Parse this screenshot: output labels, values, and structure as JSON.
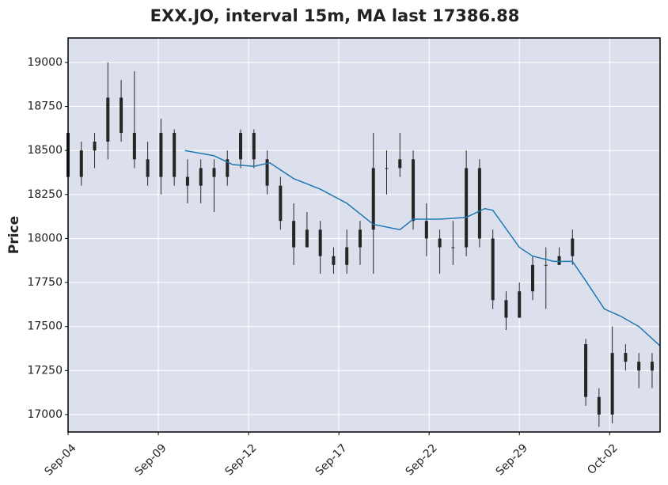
{
  "chart_data": {
    "type": "candlestick",
    "title": "EXX.JO, interval 15m, MA last 17386.88",
    "ylabel": "Price",
    "xlim": [
      0,
      223
    ],
    "ylim": [
      16901,
      19139
    ],
    "xticks": [
      {
        "value": 0,
        "label": "Sep-04"
      },
      {
        "value": 34,
        "label": "Sep-09"
      },
      {
        "value": 68,
        "label": "Sep-12"
      },
      {
        "value": 102,
        "label": "Sep-17"
      },
      {
        "value": 136,
        "label": "Sep-22"
      },
      {
        "value": 170,
        "label": "Sep-29"
      },
      {
        "value": 204,
        "label": "Oct-02"
      }
    ],
    "yticks": [
      17000,
      17250,
      17500,
      17750,
      18000,
      18250,
      18500,
      18750,
      19000
    ],
    "grid": true,
    "background": "#dce0ec",
    "gridcolor": "#ffffff",
    "color": "#262626",
    "candles": {
      "x": [
        0,
        5,
        10,
        15,
        20,
        25,
        30,
        35,
        40,
        45,
        50,
        55,
        60,
        65,
        70,
        75,
        80,
        85,
        90,
        95,
        100,
        105,
        110,
        115,
        120,
        125,
        130,
        135,
        140,
        145,
        150,
        155,
        160,
        165,
        170,
        175,
        180,
        185,
        190,
        195,
        200,
        205,
        210,
        215,
        220
      ],
      "open": [
        18600,
        18350,
        18500,
        18550,
        18800,
        18600,
        18450,
        18350,
        18600,
        18350,
        18300,
        18400,
        18350,
        18450,
        18600,
        18450,
        18300,
        18100,
        17950,
        18050,
        17900,
        17850,
        17950,
        18050,
        18400,
        18400,
        18450,
        18100,
        18000,
        17950,
        17950,
        18400,
        18000,
        17650,
        17550,
        17700,
        17850,
        17850,
        17900,
        17400,
        17100,
        17000,
        17350,
        17300,
        17250
      ],
      "high": [
        18650,
        18550,
        18600,
        19000,
        18900,
        18950,
        18550,
        18680,
        18620,
        18450,
        18450,
        18450,
        18500,
        18620,
        18620,
        18500,
        18350,
        18200,
        18150,
        18100,
        17950,
        18050,
        18100,
        18600,
        18500,
        18600,
        18500,
        18200,
        18050,
        18100,
        18500,
        18450,
        18050,
        17700,
        17750,
        17900,
        17950,
        17950,
        18050,
        17430,
        17150,
        17500,
        17400,
        17350,
        17350
      ],
      "low": [
        18200,
        18300,
        18400,
        18450,
        18550,
        18400,
        18300,
        18250,
        18300,
        18200,
        18200,
        18150,
        18300,
        18400,
        18400,
        18250,
        18050,
        17850,
        17950,
        17800,
        17800,
        17800,
        17850,
        17800,
        18250,
        18350,
        18050,
        17900,
        17800,
        17850,
        17900,
        17950,
        17600,
        17480,
        17550,
        17650,
        17600,
        17850,
        17850,
        17050,
        16930,
        16950,
        17250,
        17150,
        17150
      ],
      "close": [
        18350,
        18500,
        18550,
        18800,
        18600,
        18450,
        18350,
        18600,
        18350,
        18300,
        18400,
        18350,
        18450,
        18600,
        18450,
        18300,
        18100,
        17950,
        18050,
        17900,
        17850,
        17950,
        18050,
        18400,
        18400,
        18450,
        18100,
        18000,
        17950,
        17950,
        18400,
        18000,
        17650,
        17550,
        17700,
        17850,
        17850,
        17900,
        18000,
        17100,
        17000,
        17350,
        17300,
        17250,
        17300
      ]
    },
    "ma": {
      "color": "#1f77b4",
      "x": [
        44,
        55,
        62,
        70,
        76,
        85,
        95,
        105,
        115,
        125,
        130,
        140,
        150,
        157,
        160,
        170,
        175,
        183,
        190,
        195,
        202,
        208,
        215,
        223
      ],
      "values": [
        18500,
        18470,
        18420,
        18410,
        18430,
        18340,
        18280,
        18200,
        18080,
        18050,
        18110,
        18110,
        18120,
        18170,
        18160,
        17950,
        17900,
        17870,
        17870,
        17760,
        17600,
        17560,
        17500,
        17390
      ]
    }
  }
}
